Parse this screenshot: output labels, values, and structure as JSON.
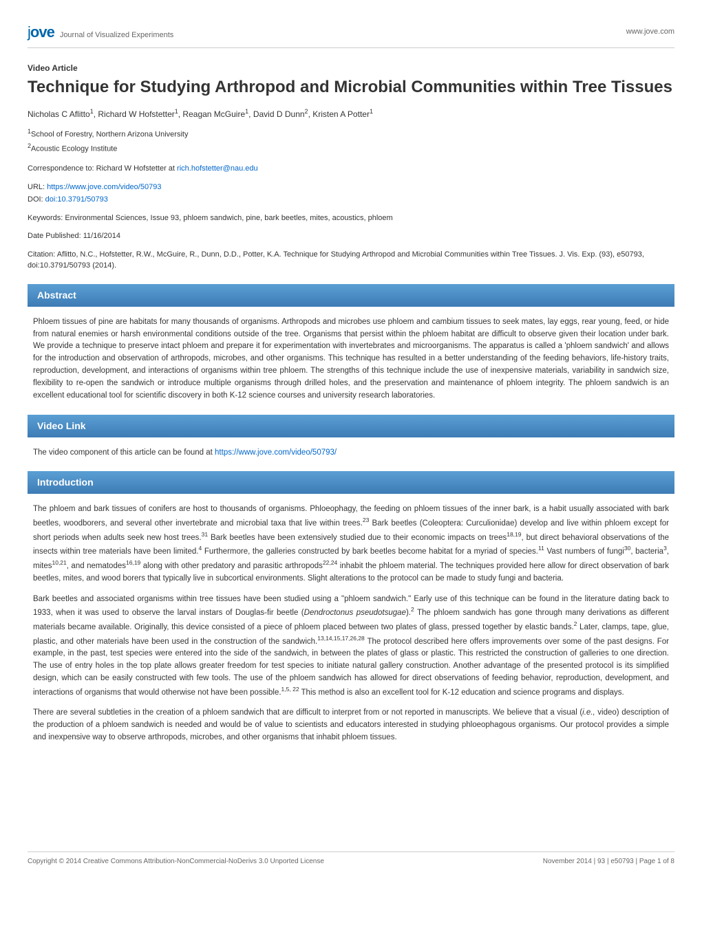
{
  "header": {
    "logo_prefix": "j",
    "logo_main": "ove",
    "journal_name": "Journal of Visualized Experiments",
    "site_url": "www.jove.com"
  },
  "article": {
    "type": "Video Article",
    "title": "Technique for Studying Arthropod and Microbial Communities within Tree Tissues",
    "authors_html": "Nicholas C Aflitto<sup>1</sup>, Richard W Hofstetter<sup>1</sup>, Reagan McGuire<sup>1</sup>, David D Dunn<sup>2</sup>, Kristen A Potter<sup>1</sup>",
    "affiliations": [
      {
        "sup": "1",
        "text": "School of Forestry, Northern Arizona University"
      },
      {
        "sup": "2",
        "text": "Acoustic Ecology Institute"
      }
    ],
    "correspondence_label": "Correspondence to: Richard W Hofstetter at ",
    "correspondence_email": "rich.hofstetter@nau.edu",
    "url_label": "URL: ",
    "url": "https://www.jove.com/video/50793",
    "doi_label": "DOI: ",
    "doi": "doi:10.3791/50793",
    "keywords": "Keywords: Environmental Sciences, Issue 93, phloem sandwich, pine, bark beetles, mites, acoustics, phloem",
    "date_published": "Date Published: 11/16/2014",
    "citation": "Citation: Aflitto, N.C., Hofstetter, R.W., McGuire, R., Dunn, D.D., Potter, K.A. Technique for Studying Arthropod and Microbial Communities within Tree Tissues. J. Vis. Exp. (93), e50793, doi:10.3791/50793 (2014)."
  },
  "sections": {
    "abstract": {
      "heading": "Abstract",
      "body": "Phloem tissues of pine are habitats for many thousands of organisms. Arthropods and microbes use phloem and cambium tissues to seek mates, lay eggs, rear young, feed, or hide from natural enemies or harsh environmental conditions outside of the tree. Organisms that persist within the phloem habitat are difficult to observe given their location under bark. We provide a technique to preserve intact phloem and prepare it for experimentation with invertebrates and microorganisms. The apparatus is called a 'phloem sandwich' and allows for the introduction and observation of arthropods, microbes, and other organisms. This technique has resulted in a better understanding of the feeding behaviors, life-history traits, reproduction, development, and interactions of organisms within tree phloem. The strengths of this technique include the use of inexpensive materials, variability in sandwich size, flexibility to re-open the sandwich or introduce multiple organisms through drilled holes, and the preservation and maintenance of phloem integrity. The phloem sandwich is an excellent educational tool for scientific discovery in both K-12 science courses and university research laboratories."
    },
    "videolink": {
      "heading": "Video Link",
      "intro": "The video component of this article can be found at ",
      "url": "https://www.jove.com/video/50793/"
    },
    "introduction": {
      "heading": "Introduction",
      "p1": "The phloem and bark tissues of conifers are host to thousands of organisms. Phloeophagy, the feeding on phloem tissues of the inner bark, is a habit usually associated with bark beetles, woodborers, and several other invertebrate and microbial taxa that live within trees.<sup>23</sup> Bark beetles (Coleoptera: Curculionidae) develop and live within phloem except for short periods when adults seek new host trees.<sup>31</sup> Bark beetles have been extensively studied due to their economic impacts on trees<sup>18,19</sup>, but direct behavioral observations of the insects within tree materials have been limited.<sup>4</sup> Furthermore, the galleries constructed by bark beetles become habitat for a myriad of species.<sup>11</sup> Vast numbers of fungi<sup>30</sup>, bacteria<sup>3</sup>, mites<sup>10,21</sup>, and nematodes<sup>16,19</sup> along with other predatory and parasitic arthropods<sup>22,24</sup> inhabit the phloem material. The techniques provided here allow for direct observation of bark beetles, mites, and wood borers that typically live in subcortical environments. Slight alterations to the protocol can be made to study fungi and bacteria.",
      "p2": "Bark beetles and associated organisms within tree tissues have been studied using a \"phloem sandwich.\" Early use of this technique can be found in the literature dating back to 1933, when it was used to observe the larval instars of Douglas-fir beetle (<em>Dendroctonus pseudotsugae</em>).<sup>2</sup> The phloem sandwich has gone through many derivations as different materials became available. Originally, this device consisted of a piece of phloem placed between two plates of glass, pressed together by elastic bands.<sup>2</sup> Later, clamps, tape, glue, plastic, and other materials have been used in the construction of the sandwich.<sup>13,14,15,17,26,28</sup> The protocol described here offers improvements over some of the past designs. For example, in the past, test species were entered into the side of the sandwich, in between the plates of glass or plastic. This restricted the construction of galleries to one direction. The use of entry holes in the top plate allows greater freedom for test species to initiate natural gallery construction. Another advantage of the presented protocol is its simplified design, which can be easily constructed with few tools. The use of the phloem sandwich has allowed for direct observations of feeding behavior, reproduction, development, and interactions of organisms that would otherwise not have been possible.<sup>1,5, 22</sup> This method is also an excellent tool for K-12 education and science programs and displays.",
      "p3": "There are several subtleties in the creation of a phloem sandwich that are difficult to interpret from or not reported in manuscripts. We believe that a visual (<em>i.e.,</em> video) description of the production of a phloem sandwich is needed and would be of value to scientists and educators interested in studying phloeophagous organisms. Our protocol provides a simple and inexpensive way to observe arthropods, microbes, and other organisms that inhabit phloem tissues."
    }
  },
  "footer": {
    "copyright": "Copyright © 2014  Creative Commons Attribution-NonCommercial-NoDerivs 3.0 Unported License",
    "pageinfo": "November 2014 |  93  | e50793 | Page 1 of 8"
  },
  "colors": {
    "section_gradient_top": "#5a9fd4",
    "section_gradient_bottom": "#3d7bb5",
    "link": "#0066cc",
    "logo": "#0066aa",
    "border": "#cccccc",
    "text": "#333333",
    "muted": "#666666"
  }
}
